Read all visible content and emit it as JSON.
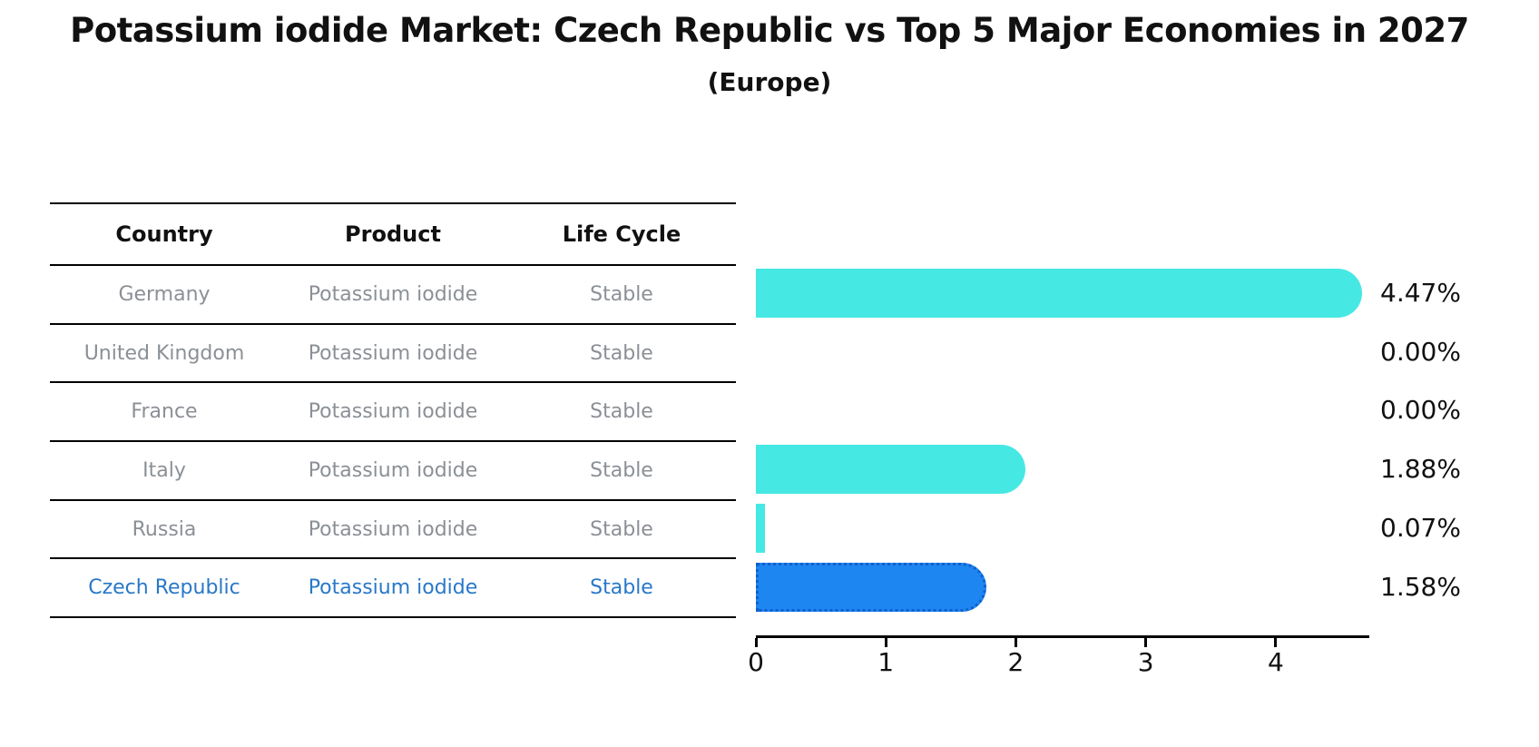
{
  "header": {
    "title": "Potassium iodide Market: Czech Republic vs Top 5 Major Economies in 2027",
    "subtitle": "(Europe)"
  },
  "table": {
    "columns": [
      "Country",
      "Product",
      "Life Cycle"
    ],
    "rows": [
      {
        "country": "Germany",
        "product": "Potassium iodide",
        "life_cycle": "Stable",
        "highlight": false
      },
      {
        "country": "United Kingdom",
        "product": "Potassium iodide",
        "life_cycle": "Stable",
        "highlight": false
      },
      {
        "country": "France",
        "product": "Potassium iodide",
        "life_cycle": "Stable",
        "highlight": false
      },
      {
        "country": "Italy",
        "product": "Potassium iodide",
        "life_cycle": "Stable",
        "highlight": false
      },
      {
        "country": "Russia",
        "product": "Potassium iodide",
        "life_cycle": "Stable",
        "highlight": false
      },
      {
        "country": "Czech Republic",
        "product": "Potassium iodide",
        "life_cycle": "Stable",
        "highlight": true
      }
    ]
  },
  "chart_data": {
    "type": "bar",
    "orientation": "horizontal",
    "title": "Potassium iodide Market: Czech Republic vs Top 5 Major Economies in 2027",
    "subtitle": "(Europe)",
    "categories": [
      "Germany",
      "United Kingdom",
      "France",
      "Italy",
      "Russia",
      "Czech Republic"
    ],
    "values": [
      4.47,
      0.0,
      0.0,
      1.88,
      0.07,
      1.58
    ],
    "value_labels": [
      "4.47%",
      "0.00%",
      "0.00%",
      "1.88%",
      "0.07%",
      "1.58%"
    ],
    "x_ticks": [
      "0",
      "1",
      "2",
      "3",
      "4"
    ],
    "xlim": [
      0,
      4.72
    ],
    "grid": false,
    "legend": false,
    "bar_color": "#46e8e4",
    "highlight_index": 5,
    "highlight_bar_color": "#1e86f0",
    "highlight_border_color": "#1060cf",
    "highlight_text_color": "#2878c8",
    "muted_text_color": "#8b9096",
    "axis_color": "#000000"
  }
}
